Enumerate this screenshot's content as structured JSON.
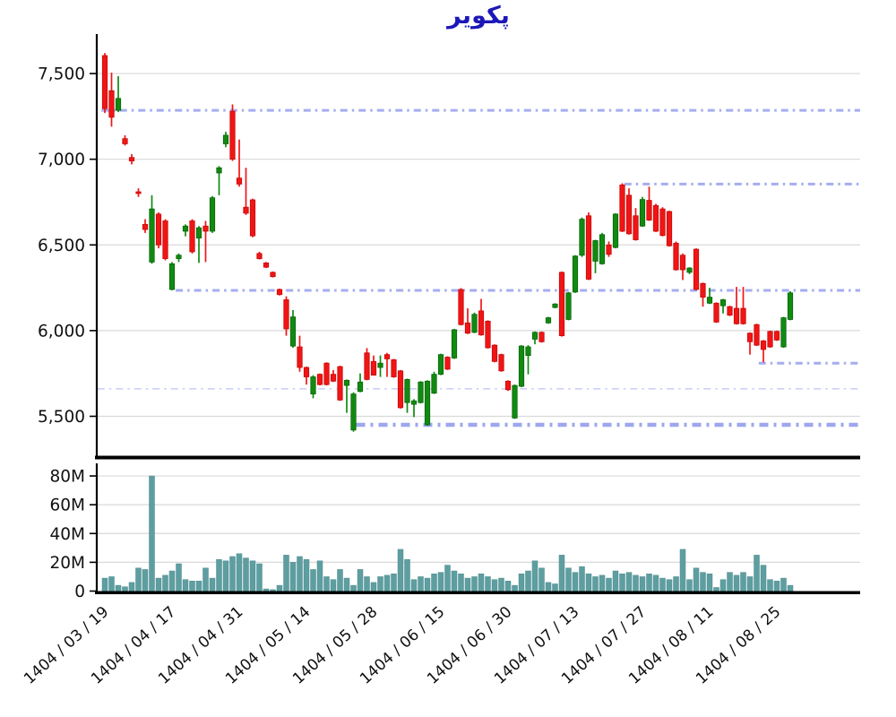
{
  "title": "پکویر",
  "colors": {
    "up": "#118a11",
    "up_edge": "#0a660a",
    "down": "#f11515",
    "down_edge": "#c60b0b",
    "volume": "#5f9ea0",
    "volume_edge": "#4d8d8f",
    "grid": "#d9d9d9",
    "axis": "#000000",
    "level_medium": "#a5adf1",
    "level_thin": "#bcc2f6",
    "level_thick": "#9da6ef",
    "title": "#1c18b8",
    "tick_text": "#111111"
  },
  "chart_data": {
    "type": "candlestick_volume",
    "title": "پکویر",
    "price_ylim": [
      5275,
      7720
    ],
    "volume_max": 87.5,
    "grid": true,
    "price_ticks": [
      {
        "value": 7500,
        "label": "7,500"
      },
      {
        "value": 7000,
        "label": "7,000"
      },
      {
        "value": 6500,
        "label": "6,500"
      },
      {
        "value": 6000,
        "label": "6,000"
      },
      {
        "value": 5500,
        "label": "5,500"
      }
    ],
    "volume_ticks": [
      {
        "value": 80,
        "label": "80M"
      },
      {
        "value": 60,
        "label": "60M"
      },
      {
        "value": 40,
        "label": "40M"
      },
      {
        "value": 20,
        "label": "20M"
      },
      {
        "value": 0,
        "label": "0"
      }
    ],
    "x_ticks": [
      {
        "index": 0,
        "label": "1404 / 03 / 19"
      },
      {
        "index": 10,
        "label": "1404 / 04 / 17"
      },
      {
        "index": 20,
        "label": "1404 / 04 / 31"
      },
      {
        "index": 30,
        "label": "1404 / 05 / 14"
      },
      {
        "index": 40,
        "label": "1404 / 05 / 28"
      },
      {
        "index": 50,
        "label": "1404 / 06 / 15"
      },
      {
        "index": 60,
        "label": "1404 / 06 / 30"
      },
      {
        "index": 70,
        "label": "1404 / 07 / 13"
      },
      {
        "index": 80,
        "label": "1404 / 07 / 27"
      },
      {
        "index": 90,
        "label": "1404 / 08 / 11"
      },
      {
        "index": 100,
        "label": "1404 / 08 / 25"
      }
    ],
    "support_resistance_levels": [
      {
        "value": 7285,
        "start_index": -0.5,
        "style": "medium"
      },
      {
        "value": 6855,
        "start_index": 77.3,
        "style": "medium"
      },
      {
        "value": 6235,
        "start_index": 10.55,
        "style": "medium"
      },
      {
        "value": 5810,
        "start_index": 97.3,
        "style": "medium"
      },
      {
        "value": 5660,
        "start_index": -1.1,
        "style": "thin"
      },
      {
        "value": 5450,
        "start_index": 37.4,
        "style": "thick"
      }
    ],
    "candles_format": [
      "open",
      "high",
      "low",
      "close",
      "volume_millions"
    ],
    "candles": [
      [
        7605,
        7620,
        7270,
        7295,
        9
      ],
      [
        7400,
        7505,
        7190,
        7245,
        10
      ],
      [
        7285,
        7485,
        7275,
        7355,
        4
      ],
      [
        7120,
        7140,
        7080,
        7090,
        3
      ],
      [
        7010,
        7030,
        6970,
        6990,
        6
      ],
      [
        6810,
        6830,
        6780,
        6800,
        16
      ],
      [
        6620,
        6650,
        6570,
        6590,
        15
      ],
      [
        6400,
        6790,
        6390,
        6710,
        80
      ],
      [
        6680,
        6690,
        6480,
        6500,
        9
      ],
      [
        6640,
        6650,
        6410,
        6420,
        11
      ],
      [
        6240,
        6400,
        6235,
        6390,
        14
      ],
      [
        6420,
        6450,
        6400,
        6440,
        19
      ],
      [
        6580,
        6620,
        6550,
        6610,
        8
      ],
      [
        6640,
        6650,
        6450,
        6460,
        7
      ],
      [
        6540,
        6610,
        6395,
        6600,
        7
      ],
      [
        6610,
        6640,
        6400,
        6580,
        16
      ],
      [
        6580,
        6785,
        6570,
        6775,
        9
      ],
      [
        6920,
        6960,
        6790,
        6950,
        22
      ],
      [
        7090,
        7160,
        7070,
        7140,
        21
      ],
      [
        7280,
        7320,
        6990,
        7000,
        24
      ],
      [
        6890,
        7115,
        6840,
        6855,
        26
      ],
      [
        6720,
        6950,
        6675,
        6685,
        23
      ],
      [
        6763,
        6770,
        6545,
        6553,
        21
      ],
      [
        6450,
        6460,
        6415,
        6420,
        19
      ],
      [
        6395,
        6400,
        6365,
        6370,
        1.5
      ],
      [
        6340,
        6345,
        6310,
        6315,
        1
      ],
      [
        6240,
        6245,
        6205,
        6210,
        4
      ],
      [
        6180,
        6200,
        5970,
        6010,
        25
      ],
      [
        5910,
        6120,
        5900,
        6080,
        20
      ],
      [
        5905,
        5970,
        5760,
        5785,
        24
      ],
      [
        5785,
        5790,
        5685,
        5730,
        22
      ],
      [
        5630,
        5740,
        5605,
        5730,
        15
      ],
      [
        5745,
        5750,
        5680,
        5685,
        21
      ],
      [
        5810,
        5815,
        5680,
        5685,
        10
      ],
      [
        5745,
        5770,
        5700,
        5705,
        8
      ],
      [
        5790,
        5795,
        5590,
        5595,
        15
      ],
      [
        5680,
        5715,
        5520,
        5710,
        9
      ],
      [
        5420,
        5640,
        5410,
        5630,
        4
      ],
      [
        5645,
        5750,
        5640,
        5700,
        15
      ],
      [
        5870,
        5898,
        5710,
        5715,
        10
      ],
      [
        5820,
        5855,
        5738,
        5740,
        6
      ],
      [
        5785,
        5855,
        5730,
        5810,
        10
      ],
      [
        5860,
        5870,
        5730,
        5835,
        11
      ],
      [
        5830,
        5835,
        5725,
        5730,
        12
      ],
      [
        5765,
        5770,
        5545,
        5550,
        29
      ],
      [
        5580,
        5720,
        5520,
        5715,
        22
      ],
      [
        5570,
        5600,
        5495,
        5590,
        8
      ],
      [
        5580,
        5705,
        5575,
        5700,
        10
      ],
      [
        5450,
        5710,
        5445,
        5705,
        9
      ],
      [
        5635,
        5760,
        5630,
        5745,
        12
      ],
      [
        5745,
        5865,
        5740,
        5860,
        13
      ],
      [
        5845,
        5850,
        5770,
        5775,
        18
      ],
      [
        5840,
        6010,
        5835,
        6005,
        14
      ],
      [
        6240,
        6248,
        6030,
        6035,
        12
      ],
      [
        6045,
        6130,
        5980,
        5985,
        9
      ],
      [
        5990,
        6105,
        5985,
        6095,
        10
      ],
      [
        6115,
        6185,
        5970,
        5975,
        12
      ],
      [
        6055,
        6060,
        5895,
        5900,
        10
      ],
      [
        5915,
        5920,
        5815,
        5820,
        8
      ],
      [
        5860,
        5865,
        5760,
        5765,
        9
      ],
      [
        5705,
        5710,
        5648,
        5655,
        7
      ],
      [
        5490,
        5685,
        5485,
        5680,
        4
      ],
      [
        5675,
        5915,
        5670,
        5910,
        12
      ],
      [
        5855,
        5915,
        5745,
        5905,
        14
      ],
      [
        5950,
        5995,
        5920,
        5990,
        21
      ],
      [
        5990,
        5995,
        5930,
        5935,
        16
      ],
      [
        6045,
        6080,
        6040,
        6075,
        6
      ],
      [
        6135,
        6160,
        6130,
        6155,
        5
      ],
      [
        6340,
        6345,
        5965,
        5970,
        25
      ],
      [
        6065,
        6225,
        6060,
        6220,
        16
      ],
      [
        6225,
        6440,
        6220,
        6435,
        13
      ],
      [
        6440,
        6660,
        6430,
        6650,
        17
      ],
      [
        6670,
        6690,
        6295,
        6300,
        12
      ],
      [
        6405,
        6530,
        6335,
        6525,
        10
      ],
      [
        6390,
        6570,
        6385,
        6560,
        11
      ],
      [
        6500,
        6520,
        6430,
        6445,
        9
      ],
      [
        6485,
        6685,
        6480,
        6680,
        14
      ],
      [
        6850,
        6860,
        6575,
        6580,
        12
      ],
      [
        6790,
        6830,
        6560,
        6565,
        13
      ],
      [
        6670,
        6715,
        6525,
        6530,
        11
      ],
      [
        6610,
        6780,
        6605,
        6765,
        10
      ],
      [
        6760,
        6840,
        6640,
        6645,
        12
      ],
      [
        6730,
        6740,
        6575,
        6580,
        11
      ],
      [
        6710,
        6720,
        6550,
        6555,
        9
      ],
      [
        6695,
        6700,
        6490,
        6495,
        8
      ],
      [
        6510,
        6520,
        6350,
        6355,
        10
      ],
      [
        6440,
        6450,
        6295,
        6355,
        29
      ],
      [
        6340,
        6370,
        6330,
        6365,
        8
      ],
      [
        6475,
        6480,
        6235,
        6240,
        16
      ],
      [
        6275,
        6280,
        6140,
        6195,
        13
      ],
      [
        6160,
        6250,
        6155,
        6195,
        12
      ],
      [
        6160,
        6165,
        6045,
        6050,
        2.5
      ],
      [
        6145,
        6185,
        6100,
        6180,
        8
      ],
      [
        6140,
        6145,
        6085,
        6090,
        13
      ],
      [
        6130,
        6255,
        6035,
        6040,
        11
      ],
      [
        6130,
        6255,
        6035,
        6040,
        13
      ],
      [
        5985,
        5990,
        5860,
        5935,
        10
      ],
      [
        6035,
        6040,
        5910,
        5915,
        25
      ],
      [
        5940,
        5945,
        5815,
        5890,
        18
      ],
      [
        5995,
        6000,
        5900,
        5905,
        8
      ],
      [
        5995,
        6000,
        5940,
        5945,
        7
      ],
      [
        5905,
        6080,
        5900,
        6075,
        9
      ],
      [
        6065,
        6230,
        6060,
        6220,
        4
      ]
    ]
  }
}
